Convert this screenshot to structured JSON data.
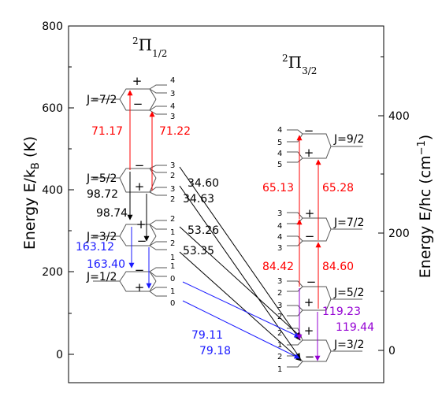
{
  "colors": {
    "red": "#ff0000",
    "blue": "#1a1aff",
    "purple": "#9400d3",
    "black": "#000000",
    "gray": "#555555"
  },
  "axes": {
    "left_title": "Energy E/k",
    "left_title_sub": "B",
    "left_title_end": " (K)",
    "right_title": "Energy E/hc (cm",
    "right_title_sup": "−1",
    "right_title_end": ")",
    "left_ticks": [
      "0",
      "200",
      "400",
      "600",
      "800"
    ],
    "right_ticks": [
      "0",
      "200",
      "400"
    ]
  },
  "terms": {
    "left": {
      "sup": "2",
      "main": "Π",
      "sub": "1/2"
    },
    "right": {
      "sup": "2",
      "main": "Π",
      "sub": "3/2"
    }
  },
  "j_labels": {
    "pi12_j72": "J=7/2",
    "pi12_j52": "J=5/2",
    "pi12_j32": "J=3/2",
    "pi12_j12": "J=1/2",
    "pi32_j92": "J=9/2",
    "pi32_j72": "J=7/2",
    "pi32_j52": "J=5/2",
    "pi32_j32": "J=3/2"
  },
  "f_labels": {
    "pi12_j72_up": [
      "4",
      "3"
    ],
    "pi12_j72_lo": [
      "4",
      "3"
    ],
    "pi12_j52_up": [
      "3",
      "2"
    ],
    "pi12_j52_lo": [
      "3",
      "2"
    ],
    "pi12_j32_up": [
      "2",
      "1"
    ],
    "pi12_j32_lo": [
      "2",
      "1"
    ],
    "pi12_j12_up": [
      "1",
      "0"
    ],
    "pi12_j12_lo": [
      "1",
      "0"
    ],
    "pi32_j92_up": [
      "4",
      "5"
    ],
    "pi32_j92_lo": [
      "4",
      "5"
    ],
    "pi32_j72_up": [
      "3",
      "4"
    ],
    "pi32_j72_lo": [
      "4",
      "3"
    ],
    "pi32_j52_up": [
      "3",
      "2"
    ],
    "pi32_j52_lo": [
      "3",
      "2"
    ],
    "pi32_j32_up": [
      "2",
      "1"
    ],
    "pi32_j32_lo": [
      "2",
      "1"
    ]
  },
  "parity": {
    "plus": "+",
    "minus": "−"
  },
  "transitions": {
    "red_left_a": "71.17",
    "red_left_b": "71.22",
    "black_a": "34.60",
    "black_b": "34.63",
    "black_c": "98.72",
    "black_d": "98.74",
    "black_e": "53.26",
    "black_f": "53.35",
    "blue_a": "163.12",
    "blue_b": "163.40",
    "blue_c": "79.11",
    "blue_d": "79.18",
    "red_right_a": "65.13",
    "red_right_b": "65.28",
    "red_right_c": "84.42",
    "red_right_d": "84.60",
    "purple_a": "119.23",
    "purple_b": "119.44"
  }
}
